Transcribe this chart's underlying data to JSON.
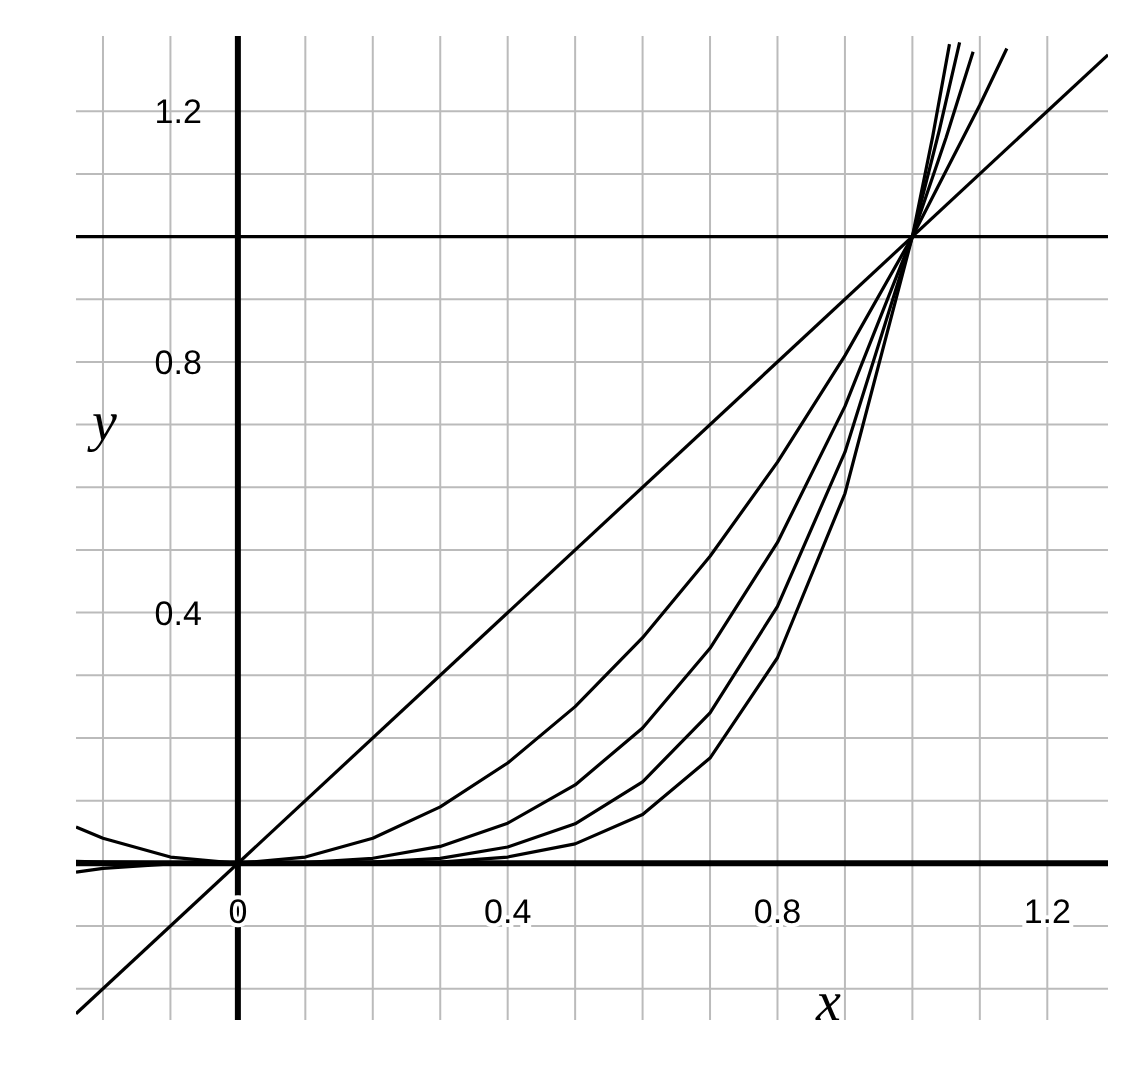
{
  "chart_data": {
    "type": "line",
    "xlabel": "x",
    "ylabel": "y",
    "xlim": [
      -0.24,
      1.29
    ],
    "ylim": [
      -0.25,
      1.32
    ],
    "xticks": [
      {
        "value": -0.2,
        "label": null
      },
      {
        "value": -0.1,
        "label": null
      },
      {
        "value": 0,
        "label": "0"
      },
      {
        "value": 0.1,
        "label": null
      },
      {
        "value": 0.2,
        "label": null
      },
      {
        "value": 0.3,
        "label": null
      },
      0.4,
      {
        "value": 0.5,
        "label": null
      },
      {
        "value": 0.6,
        "label": null
      },
      {
        "value": 0.7,
        "label": null
      },
      0.8,
      {
        "value": 0.9,
        "label": null
      },
      {
        "value": 1.0,
        "label": null
      },
      {
        "value": 1.1,
        "label": null
      },
      1.2
    ],
    "yticks": [
      {
        "value": -0.2,
        "label": null
      },
      {
        "value": -0.1,
        "label": null
      },
      {
        "value": 0.1,
        "label": null
      },
      {
        "value": 0.2,
        "label": null
      },
      {
        "value": 0.3,
        "label": null
      },
      0.4,
      {
        "value": 0.5,
        "label": null
      },
      {
        "value": 0.6,
        "label": null
      },
      {
        "value": 0.7,
        "label": null
      },
      0.8,
      {
        "value": 0.9,
        "label": null
      },
      {
        "value": 1.0,
        "label": null
      },
      {
        "value": 1.1,
        "label": null
      },
      1.2
    ],
    "grid": true,
    "marker": "none",
    "line_style": "solid",
    "series": [
      {
        "color": "#000000",
        "x": [
          -0.24,
          1.29
        ],
        "values": [
          1,
          1
        ]
      },
      {
        "color": "#000000",
        "x": [
          -0.24,
          1.29
        ],
        "values": [
          -0.24,
          1.29
        ]
      },
      {
        "color": "#000000",
        "x": [
          -0.24,
          -0.2,
          -0.1,
          0,
          0.1,
          0.2,
          0.3,
          0.4,
          0.5,
          0.6,
          0.7,
          0.8,
          0.9,
          1,
          1.1,
          1.14
        ],
        "values": [
          0.058,
          0.04,
          0.01,
          0,
          0.01,
          0.04,
          0.09,
          0.16,
          0.25,
          0.36,
          0.49,
          0.64,
          0.81,
          1,
          1.21,
          1.3
        ]
      },
      {
        "color": "#000000",
        "x": [
          -0.24,
          -0.2,
          -0.1,
          0,
          0.1,
          0.2,
          0.3,
          0.4,
          0.5,
          0.6,
          0.7,
          0.8,
          0.9,
          1,
          1.05,
          1.09
        ],
        "values": [
          -0.014,
          -0.008,
          -0.001,
          0,
          0.001,
          0.008,
          0.027,
          0.064,
          0.125,
          0.216,
          0.343,
          0.512,
          0.729,
          1,
          1.158,
          1.295
        ]
      },
      {
        "color": "#000000",
        "x": [
          -0.24,
          -0.2,
          0,
          0.2,
          0.3,
          0.4,
          0.5,
          0.6,
          0.7,
          0.8,
          0.9,
          1,
          1.04,
          1.07
        ],
        "values": [
          0.003,
          0.002,
          0,
          0.002,
          0.008,
          0.026,
          0.063,
          0.13,
          0.24,
          0.41,
          0.656,
          1,
          1.17,
          1.31
        ]
      },
      {
        "color": "#000000",
        "x": [
          -0.24,
          0,
          0.3,
          0.4,
          0.5,
          0.6,
          0.7,
          0.8,
          0.9,
          1,
          1.03,
          1.055
        ],
        "values": [
          -0.001,
          0,
          0.002,
          0.01,
          0.031,
          0.078,
          0.168,
          0.328,
          0.59,
          1,
          1.159,
          1.307
        ]
      }
    ]
  }
}
